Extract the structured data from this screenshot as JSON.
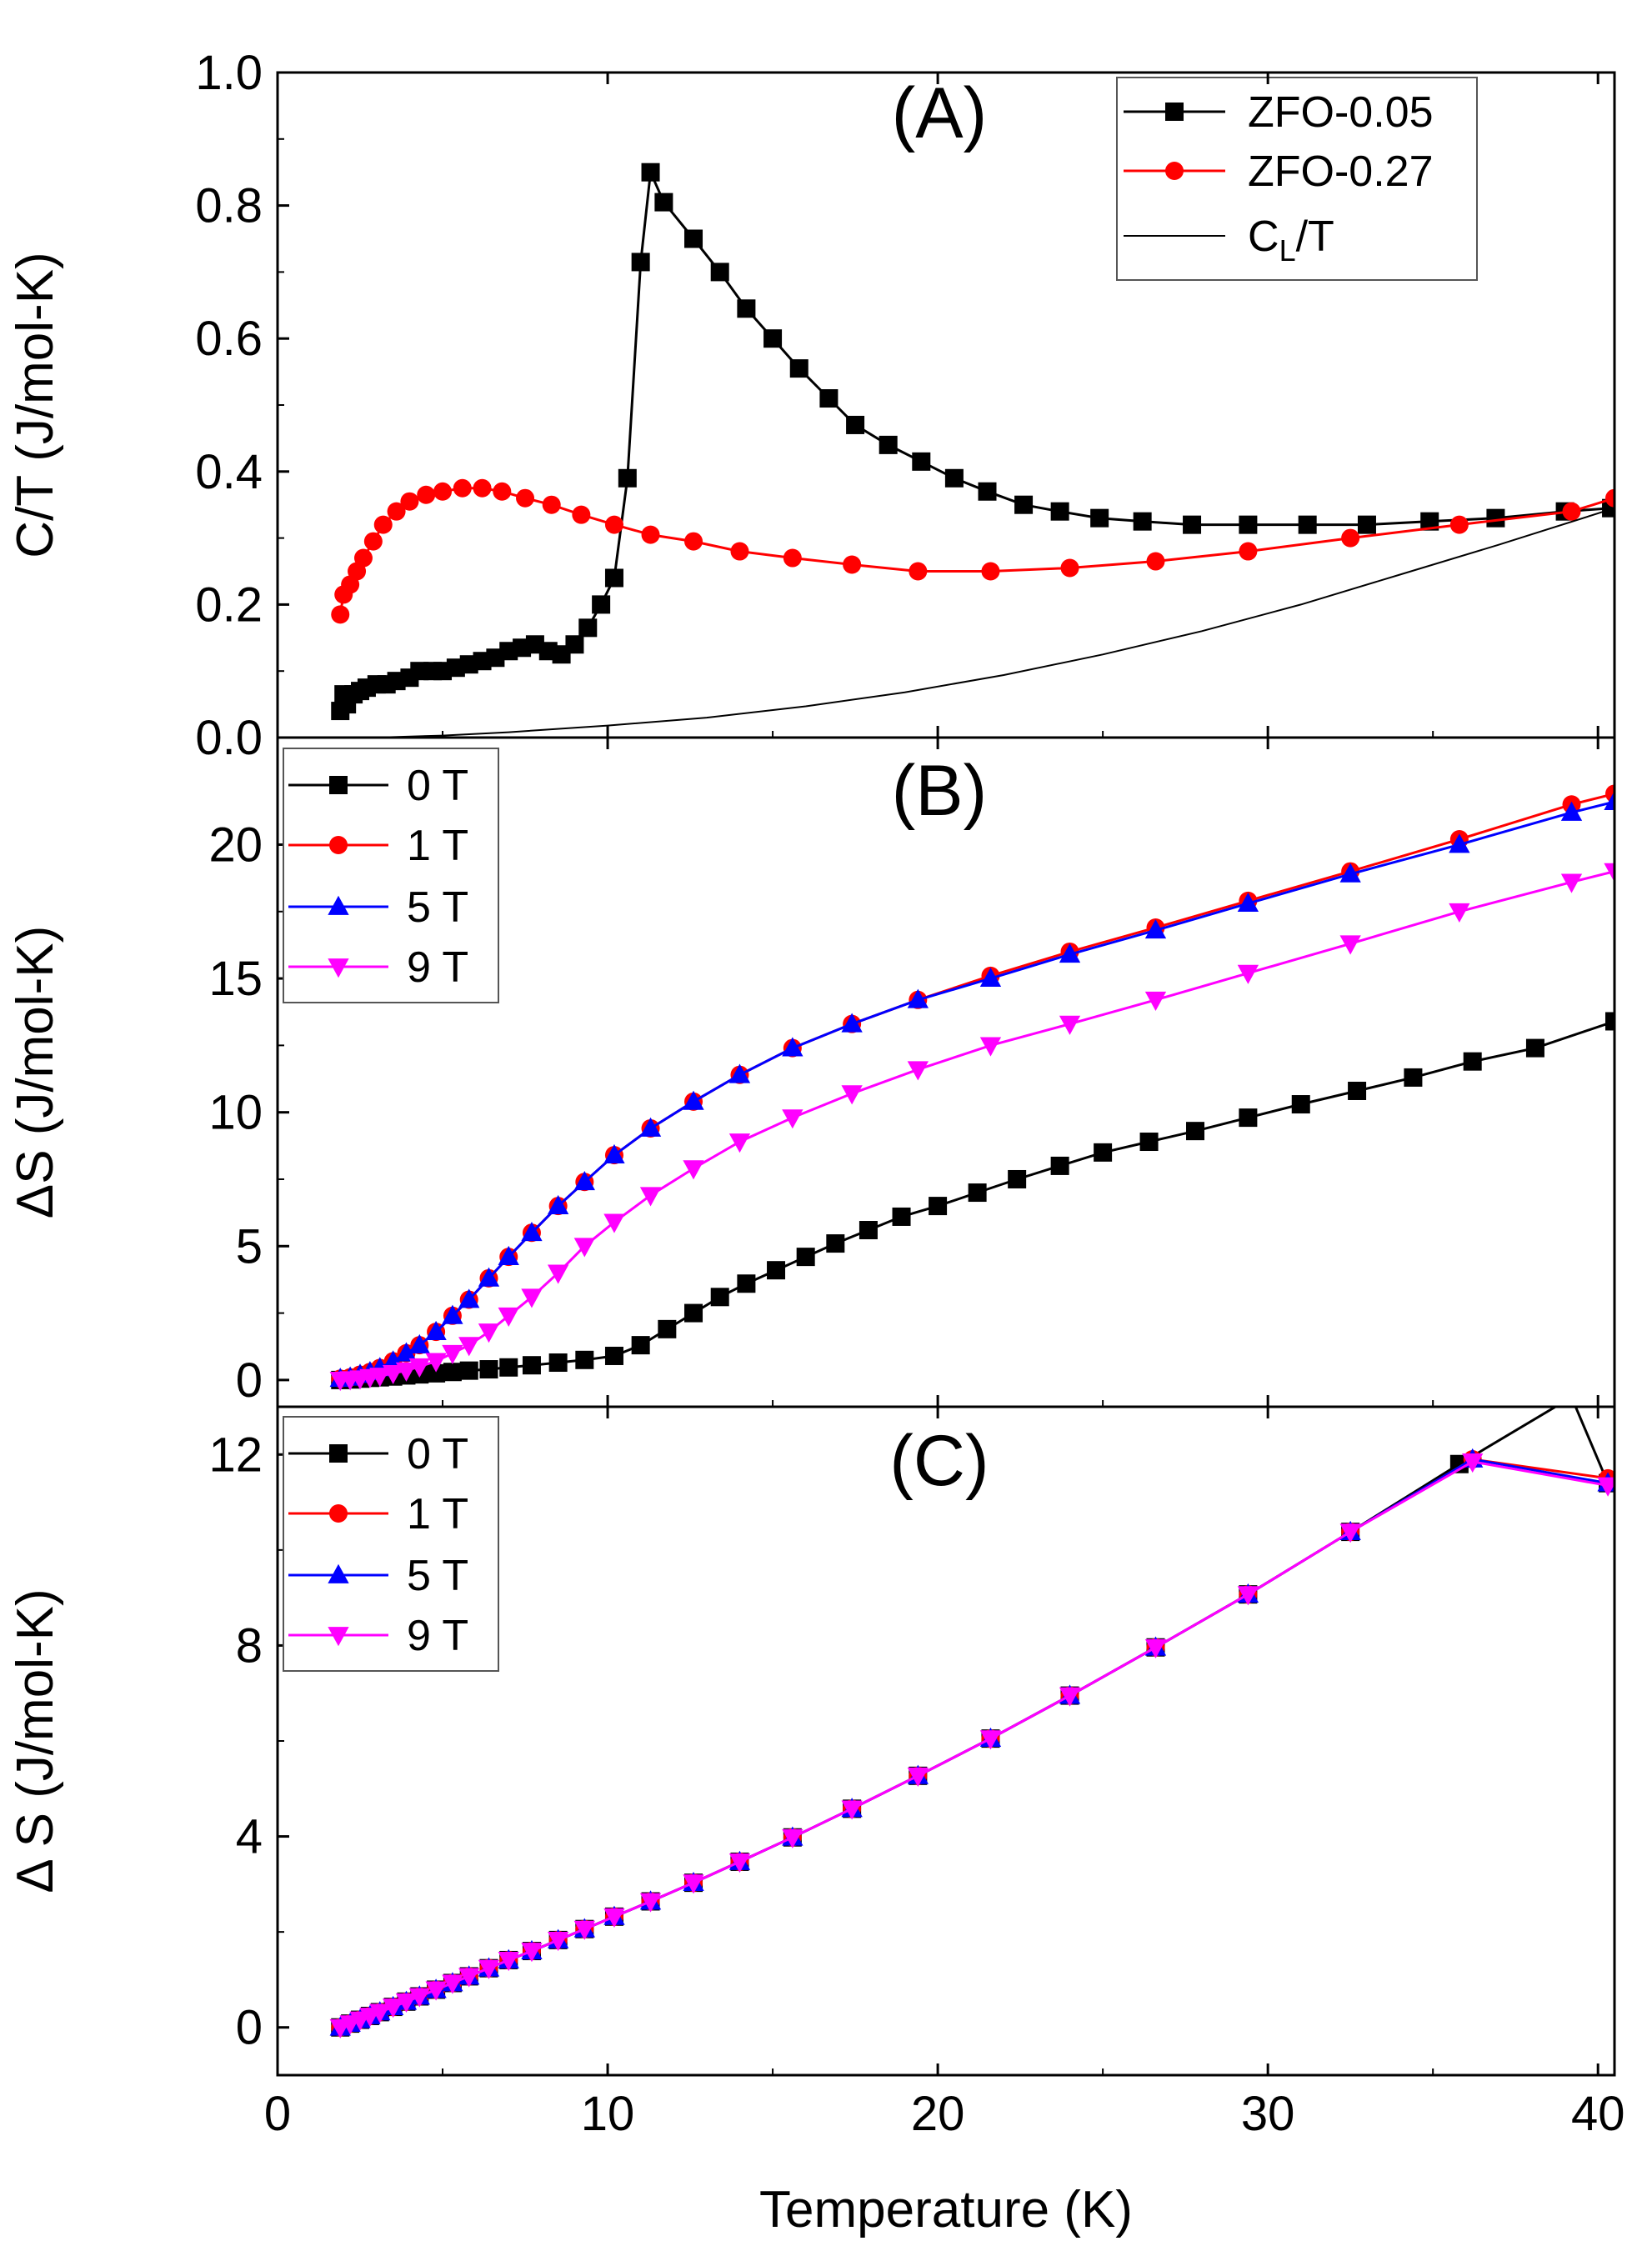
{
  "figure": {
    "xlabel": "Temperature (K)",
    "x_ticks": [
      "0",
      "10",
      "20",
      "30",
      "40"
    ]
  },
  "chart_data": [
    {
      "type": "line",
      "panel_label": "(A)",
      "ylabel": "C/T (J/mol-K)",
      "xlim": [
        0,
        40.5
      ],
      "ylim": [
        0,
        1.0
      ],
      "y_ticks": [
        0.0,
        0.2,
        0.4,
        0.6,
        0.8,
        1.0
      ],
      "y_tick_labels": [
        "0.0",
        "0.2",
        "0.4",
        "0.6",
        "0.8",
        "1.0"
      ],
      "legend": {
        "position": "top-right",
        "entries": [
          "ZFO-0.05",
          "ZFO-0.27",
          "C_L/T"
        ]
      },
      "series": [
        {
          "name": "ZFO-0.05",
          "color": "#000000",
          "marker": "square",
          "x": [
            1.9,
            2.0,
            2.1,
            2.3,
            2.5,
            2.7,
            3.0,
            3.3,
            3.6,
            4.0,
            4.3,
            4.7,
            5.0,
            5.4,
            5.8,
            6.2,
            6.6,
            7.0,
            7.4,
            7.8,
            8.2,
            8.6,
            9.0,
            9.4,
            9.8,
            10.2,
            10.6,
            11.0,
            11.3,
            11.7,
            12.6,
            13.4,
            14.2,
            15.0,
            15.8,
            16.7,
            17.5,
            18.5,
            19.5,
            20.5,
            21.5,
            22.6,
            23.7,
            24.9,
            26.2,
            27.7,
            29.4,
            31.2,
            33.0,
            34.9,
            36.9,
            39.0,
            40.4
          ],
          "y": [
            0.04,
            0.065,
            0.05,
            0.065,
            0.07,
            0.075,
            0.08,
            0.08,
            0.085,
            0.09,
            0.1,
            0.1,
            0.1,
            0.105,
            0.11,
            0.115,
            0.12,
            0.13,
            0.135,
            0.14,
            0.13,
            0.125,
            0.14,
            0.165,
            0.2,
            0.24,
            0.39,
            0.715,
            0.85,
            0.805,
            0.75,
            0.7,
            0.645,
            0.6,
            0.555,
            0.51,
            0.47,
            0.44,
            0.415,
            0.39,
            0.37,
            0.35,
            0.34,
            0.33,
            0.325,
            0.32,
            0.32,
            0.32,
            0.32,
            0.325,
            0.33,
            0.34,
            0.345
          ]
        },
        {
          "name": "ZFO-0.27",
          "color": "#ff0000",
          "marker": "circle",
          "x": [
            1.9,
            2.0,
            2.2,
            2.4,
            2.6,
            2.9,
            3.2,
            3.6,
            4.0,
            4.5,
            5.0,
            5.6,
            6.2,
            6.8,
            7.5,
            8.3,
            9.2,
            10.2,
            11.3,
            12.6,
            14.0,
            15.6,
            17.4,
            19.4,
            21.6,
            24.0,
            26.6,
            29.4,
            32.5,
            35.8,
            39.2,
            40.5
          ],
          "y": [
            0.185,
            0.215,
            0.23,
            0.25,
            0.27,
            0.295,
            0.32,
            0.34,
            0.355,
            0.365,
            0.37,
            0.375,
            0.375,
            0.37,
            0.36,
            0.35,
            0.335,
            0.32,
            0.305,
            0.295,
            0.28,
            0.27,
            0.26,
            0.25,
            0.25,
            0.255,
            0.265,
            0.28,
            0.3,
            0.32,
            0.34,
            0.36
          ]
        },
        {
          "name": "C_L/T",
          "color": "#000000",
          "marker": "none",
          "x": [
            3,
            5,
            7,
            10,
            13,
            16,
            19,
            22,
            25,
            28,
            31,
            34,
            37,
            40.5
          ],
          "y": [
            0.0,
            0.003,
            0.008,
            0.018,
            0.03,
            0.047,
            0.068,
            0.094,
            0.125,
            0.16,
            0.2,
            0.245,
            0.29,
            0.345
          ]
        }
      ]
    },
    {
      "type": "line",
      "panel_label": "(B)",
      "ylabel": "ΔS (J/mol-K)",
      "xlim": [
        0,
        40.5
      ],
      "ylim": [
        -1,
        24
      ],
      "y_ticks": [
        0,
        5,
        10,
        15,
        20
      ],
      "y_tick_labels": [
        "0",
        "5",
        "10",
        "15",
        "20"
      ],
      "legend": {
        "position": "top-left",
        "entries": [
          "0 T",
          "1 T",
          "5 T",
          "9 T"
        ]
      },
      "series": [
        {
          "name": "0 T",
          "color": "#000000",
          "marker": "square",
          "x": [
            1.9,
            2.2,
            2.5,
            2.8,
            3.1,
            3.5,
            3.9,
            4.3,
            4.8,
            5.3,
            5.8,
            6.4,
            7.0,
            7.7,
            8.5,
            9.3,
            10.2,
            11.0,
            11.8,
            12.6,
            13.4,
            14.2,
            15.1,
            16.0,
            16.9,
            17.9,
            18.9,
            20.0,
            21.2,
            22.4,
            23.7,
            25.0,
            26.4,
            27.8,
            29.4,
            31.0,
            32.7,
            34.4,
            36.2,
            38.1,
            40.5
          ],
          "y": [
            0,
            0.02,
            0.05,
            0.08,
            0.1,
            0.13,
            0.17,
            0.21,
            0.25,
            0.3,
            0.35,
            0.4,
            0.47,
            0.55,
            0.65,
            0.75,
            0.9,
            1.3,
            1.9,
            2.5,
            3.1,
            3.6,
            4.1,
            4.6,
            5.1,
            5.6,
            6.1,
            6.5,
            7.0,
            7.5,
            8.0,
            8.5,
            8.9,
            9.3,
            9.8,
            10.3,
            10.8,
            11.3,
            11.9,
            12.4,
            13.4
          ]
        },
        {
          "name": "1 T",
          "color": "#ff0000",
          "marker": "circle",
          "x": [
            1.9,
            2.2,
            2.5,
            2.8,
            3.1,
            3.5,
            3.9,
            4.3,
            4.8,
            5.3,
            5.8,
            6.4,
            7.0,
            7.7,
            8.5,
            9.3,
            10.2,
            11.3,
            12.6,
            14.0,
            15.6,
            17.4,
            19.4,
            21.6,
            24.0,
            26.6,
            29.4,
            32.5,
            35.8,
            39.2,
            40.5
          ],
          "y": [
            0.05,
            0.1,
            0.2,
            0.3,
            0.45,
            0.7,
            1.0,
            1.3,
            1.8,
            2.4,
            3.0,
            3.8,
            4.6,
            5.5,
            6.5,
            7.4,
            8.4,
            9.4,
            10.4,
            11.4,
            12.4,
            13.3,
            14.2,
            15.1,
            16.0,
            16.9,
            17.9,
            19.0,
            20.2,
            21.5,
            21.9
          ]
        },
        {
          "name": "5 T",
          "color": "#0000ff",
          "marker": "triangle-up",
          "x": [
            1.9,
            2.2,
            2.5,
            2.8,
            3.1,
            3.5,
            3.9,
            4.3,
            4.8,
            5.3,
            5.8,
            6.4,
            7.0,
            7.7,
            8.5,
            9.3,
            10.2,
            11.3,
            12.6,
            14.0,
            15.6,
            17.4,
            19.4,
            21.6,
            24.0,
            26.6,
            29.4,
            32.5,
            35.8,
            39.2,
            40.5
          ],
          "y": [
            0.05,
            0.1,
            0.2,
            0.3,
            0.45,
            0.7,
            1.0,
            1.3,
            1.8,
            2.4,
            3.0,
            3.8,
            4.6,
            5.5,
            6.5,
            7.4,
            8.4,
            9.4,
            10.4,
            11.4,
            12.4,
            13.3,
            14.2,
            15.0,
            15.9,
            16.8,
            17.8,
            18.9,
            20.0,
            21.2,
            21.6
          ]
        },
        {
          "name": "9 T",
          "color": "#ff00ff",
          "marker": "triangle-down",
          "x": [
            1.9,
            2.2,
            2.5,
            2.8,
            3.1,
            3.5,
            3.9,
            4.3,
            4.8,
            5.3,
            5.8,
            6.4,
            7.0,
            7.7,
            8.5,
            9.3,
            10.2,
            11.3,
            12.6,
            14.0,
            15.6,
            17.4,
            19.4,
            21.6,
            24.0,
            26.6,
            29.4,
            32.5,
            35.8,
            39.2,
            40.5
          ],
          "y": [
            0,
            0.02,
            0.05,
            0.1,
            0.15,
            0.25,
            0.35,
            0.5,
            0.7,
            1.0,
            1.3,
            1.8,
            2.4,
            3.1,
            4.0,
            5.0,
            5.9,
            6.9,
            7.9,
            8.9,
            9.8,
            10.7,
            11.6,
            12.5,
            13.3,
            14.2,
            15.2,
            16.3,
            17.5,
            18.6,
            19.0
          ]
        }
      ]
    },
    {
      "type": "line",
      "panel_label": "(C)",
      "ylabel": "Δ S (J/mol-K)",
      "xlim": [
        0,
        40.5
      ],
      "ylim": [
        -1,
        13
      ],
      "y_ticks": [
        0,
        4,
        8,
        12
      ],
      "y_tick_labels": [
        "0",
        "4",
        "8",
        "12"
      ],
      "legend": {
        "position": "top-left",
        "entries": [
          "0 T",
          "1 T",
          "5 T",
          "9 T"
        ]
      },
      "series": [
        {
          "name": "0 T",
          "color": "#000000",
          "marker": "square",
          "x": [
            1.9,
            2.2,
            2.5,
            2.8,
            3.1,
            3.5,
            3.9,
            4.3,
            4.8,
            5.3,
            5.8,
            6.4,
            7.0,
            7.7,
            8.5,
            9.3,
            10.2,
            11.3,
            12.6,
            14.0,
            15.6,
            17.4,
            19.4,
            21.6,
            24.0,
            26.6,
            29.4,
            32.5,
            35.8,
            39.2,
            40.3
          ],
          "y": [
            0,
            0.08,
            0.16,
            0.24,
            0.32,
            0.43,
            0.54,
            0.65,
            0.79,
            0.93,
            1.07,
            1.24,
            1.41,
            1.6,
            1.83,
            2.06,
            2.32,
            2.64,
            3.03,
            3.47,
            3.98,
            4.58,
            5.27,
            6.05,
            6.95,
            7.96,
            9.07,
            10.38,
            11.8,
            13.2,
            11.4
          ]
        },
        {
          "name": "1 T",
          "color": "#ff0000",
          "marker": "circle",
          "x": [
            1.9,
            2.2,
            2.5,
            2.8,
            3.1,
            3.5,
            3.9,
            4.3,
            4.8,
            5.3,
            5.8,
            6.4,
            7.0,
            7.7,
            8.5,
            9.3,
            10.2,
            11.3,
            12.6,
            14.0,
            15.6,
            17.4,
            19.4,
            21.6,
            24.0,
            26.6,
            29.4,
            32.5,
            36.2,
            40.3
          ],
          "y": [
            0,
            0.08,
            0.16,
            0.24,
            0.32,
            0.43,
            0.54,
            0.65,
            0.79,
            0.93,
            1.07,
            1.24,
            1.41,
            1.6,
            1.83,
            2.06,
            2.32,
            2.64,
            3.03,
            3.47,
            3.98,
            4.58,
            5.27,
            6.05,
            6.95,
            7.96,
            9.07,
            10.38,
            11.9,
            11.5
          ]
        },
        {
          "name": "5 T",
          "color": "#0000ff",
          "marker": "triangle-up",
          "x": [
            1.9,
            2.2,
            2.5,
            2.8,
            3.1,
            3.5,
            3.9,
            4.3,
            4.8,
            5.3,
            5.8,
            6.4,
            7.0,
            7.7,
            8.5,
            9.3,
            10.2,
            11.3,
            12.6,
            14.0,
            15.6,
            17.4,
            19.4,
            21.6,
            24.0,
            26.6,
            29.4,
            32.5,
            36.2,
            40.3
          ],
          "y": [
            0,
            0.08,
            0.16,
            0.24,
            0.32,
            0.43,
            0.54,
            0.65,
            0.79,
            0.93,
            1.07,
            1.24,
            1.41,
            1.6,
            1.83,
            2.06,
            2.32,
            2.64,
            3.03,
            3.47,
            3.98,
            4.58,
            5.27,
            6.05,
            6.95,
            7.96,
            9.07,
            10.38,
            11.9,
            11.4
          ]
        },
        {
          "name": "9 T",
          "color": "#ff00ff",
          "marker": "triangle-down",
          "x": [
            1.9,
            2.2,
            2.5,
            2.8,
            3.1,
            3.5,
            3.9,
            4.3,
            4.8,
            5.3,
            5.8,
            6.4,
            7.0,
            7.7,
            8.5,
            9.3,
            10.2,
            11.3,
            12.6,
            14.0,
            15.6,
            17.4,
            19.4,
            21.6,
            24.0,
            26.6,
            29.4,
            32.5,
            36.2,
            40.3
          ],
          "y": [
            0,
            0.08,
            0.16,
            0.24,
            0.32,
            0.43,
            0.54,
            0.65,
            0.79,
            0.93,
            1.07,
            1.24,
            1.41,
            1.6,
            1.83,
            2.06,
            2.32,
            2.64,
            3.03,
            3.47,
            3.98,
            4.58,
            5.27,
            6.05,
            6.95,
            7.96,
            9.07,
            10.38,
            11.85,
            11.35
          ]
        }
      ]
    }
  ]
}
